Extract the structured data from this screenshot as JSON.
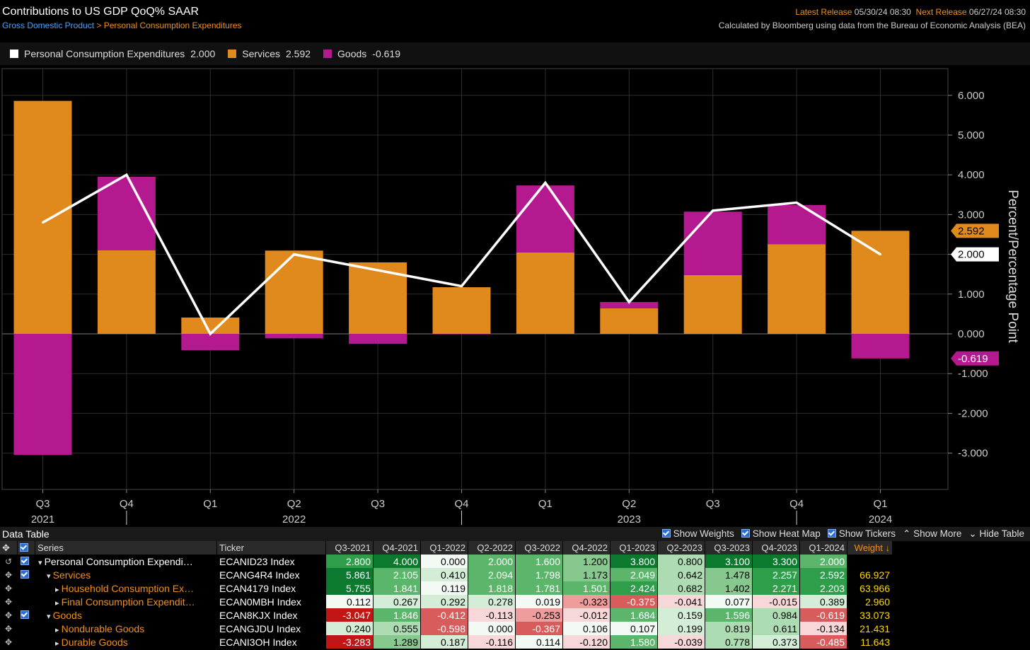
{
  "header": {
    "title": "Contributions to US GDP QoQ% SAAR",
    "breadcrumb_root": "Gross Domestic Product",
    "breadcrumb_sep": ">",
    "breadcrumb_current": "Personal Consumption Expenditures",
    "latest_release_label": "Latest Release",
    "latest_release_value": "05/30/24 08:30",
    "next_release_label": "Next Release",
    "next_release_value": "06/27/24 08:30",
    "source": "Calculated by Bloomberg using data from the Bureau of Economic Analysis (BEA)"
  },
  "legend": [
    {
      "name": "Personal Consumption Expenditures",
      "value": "2.000",
      "color": "#ffffff"
    },
    {
      "name": "Services",
      "value": "2.592",
      "color": "#e08a1e"
    },
    {
      "name": "Goods",
      "value": "-0.619",
      "color": "#b5198f"
    }
  ],
  "chart_data": {
    "type": "bar",
    "stacked": true,
    "title": "Contributions to US GDP QoQ% SAAR",
    "ylabel": "Percent/Percentage Point",
    "ylim": [
      -3.9,
      6.5
    ],
    "yticks": [
      "6.000",
      "5.000",
      "4.000",
      "3.000",
      "2.000",
      "1.000",
      "0.000",
      "-1.000",
      "-2.000",
      "-3.000"
    ],
    "ytick_values": [
      6,
      5,
      4,
      3,
      2,
      1,
      0,
      -1,
      -2,
      -3
    ],
    "categories": [
      "Q3",
      "Q4",
      "Q1",
      "Q2",
      "Q3",
      "Q4",
      "Q1",
      "Q2",
      "Q3",
      "Q4",
      "Q1"
    ],
    "years": [
      {
        "label": "2021",
        "at_index": 0
      },
      {
        "label": "2022",
        "at_index": 3
      },
      {
        "label": "2023",
        "at_index": 7
      },
      {
        "label": "2024",
        "at_index": 10
      }
    ],
    "series": [
      {
        "name": "Services",
        "kind": "bar",
        "color": "#e08a1e",
        "values": [
          5.861,
          2.105,
          0.41,
          2.094,
          1.798,
          1.173,
          2.049,
          0.642,
          1.478,
          2.257,
          2.592
        ]
      },
      {
        "name": "Goods",
        "kind": "bar",
        "color": "#b5198f",
        "values": [
          -3.047,
          1.846,
          -0.412,
          -0.113,
          -0.253,
          -0.012,
          1.684,
          0.159,
          1.596,
          0.984,
          -0.619
        ]
      },
      {
        "name": "Personal Consumption Expenditures",
        "kind": "line",
        "color": "#ffffff",
        "values": [
          2.8,
          4.0,
          0.0,
          2.0,
          1.6,
          1.2,
          3.8,
          0.8,
          3.1,
          3.3,
          2.0
        ]
      }
    ],
    "last_value_tags": [
      {
        "text": "2.592",
        "value": 2.592,
        "bg": "#e08a1e",
        "fg": "#000000"
      },
      {
        "text": "2.000",
        "value": 2.0,
        "bg": "#ffffff",
        "fg": "#000000"
      },
      {
        "text": "-0.619",
        "value": -0.619,
        "bg": "#b5198f",
        "fg": "#ffffff"
      }
    ]
  },
  "data_table": {
    "title": "Data Table",
    "controls": [
      "Show Weights",
      "Show Heat Map",
      "Show Tickers",
      "Show More",
      "Hide Table"
    ],
    "col_series": "Series",
    "col_ticker": "Ticker",
    "col_weight": "Weight ↓",
    "periods": [
      "Q3-2021",
      "Q4-2021",
      "Q1-2022",
      "Q2-2022",
      "Q3-2022",
      "Q4-2022",
      "Q1-2023",
      "Q2-2023",
      "Q3-2023",
      "Q4-2023",
      "Q1-2024"
    ],
    "rows": [
      {
        "series": "Personal Consumption Expendi…",
        "ticker": "ECANID23 Index",
        "color": "white",
        "indent": 0,
        "arrow": "▾",
        "checked": true,
        "icon": "↺",
        "values": [
          "2.800",
          "4.000",
          "0.000",
          "2.000",
          "1.600",
          "1.200",
          "3.800",
          "0.800",
          "3.100",
          "3.300",
          "2.000"
        ],
        "weight": ""
      },
      {
        "series": "Services",
        "ticker": "ECANG4R4 Index",
        "color": "orange",
        "indent": 1,
        "arrow": "▾",
        "checked": true,
        "icon": "✥",
        "values": [
          "5.861",
          "2.105",
          "0.410",
          "2.094",
          "1.798",
          "1.173",
          "2.049",
          "0.642",
          "1.478",
          "2.257",
          "2.592"
        ],
        "weight": "66.927"
      },
      {
        "series": "Household Consumption Ex…",
        "ticker": "ECAN4179 Index",
        "color": "orange",
        "indent": 2,
        "arrow": "▸",
        "checked": false,
        "icon": "✥",
        "values": [
          "5.755",
          "1.841",
          "0.119",
          "1.818",
          "1.781",
          "1.501",
          "2.424",
          "0.682",
          "1.402",
          "2.271",
          "2.203"
        ],
        "weight": "63.966"
      },
      {
        "series": "Final Consumption Expendit…",
        "ticker": "ECAN0MBH Index",
        "color": "orange",
        "indent": 2,
        "arrow": "▸",
        "checked": false,
        "icon": "✥",
        "values": [
          "0.112",
          "0.267",
          "0.292",
          "0.278",
          "0.019",
          "-0.323",
          "-0.375",
          "-0.041",
          "0.077",
          "-0.015",
          "0.389"
        ],
        "weight": "2.960"
      },
      {
        "series": "Goods",
        "ticker": "ECAN8KJX Index",
        "color": "orange",
        "indent": 1,
        "arrow": "▾",
        "checked": true,
        "icon": "✥",
        "values": [
          "-3.047",
          "1.846",
          "-0.412",
          "-0.113",
          "-0.253",
          "-0.012",
          "1.684",
          "0.159",
          "1.596",
          "0.984",
          "-0.619"
        ],
        "weight": "33.073"
      },
      {
        "series": "Nondurable Goods",
        "ticker": "ECANGJDU Index",
        "color": "orange",
        "indent": 2,
        "arrow": "▸",
        "checked": false,
        "icon": "✥",
        "values": [
          "0.240",
          "0.555",
          "-0.598",
          "0.000",
          "-0.367",
          "0.106",
          "0.107",
          "0.199",
          "0.819",
          "0.611",
          "-0.134"
        ],
        "weight": "21.431"
      },
      {
        "series": "Durable Goods",
        "ticker": "ECANI3OH Index",
        "color": "orange",
        "indent": 2,
        "arrow": "▸",
        "checked": false,
        "icon": "✥",
        "values": [
          "-3.283",
          "1.289",
          "0.187",
          "-0.116",
          "0.114",
          "-0.120",
          "1.580",
          "-0.039",
          "0.778",
          "0.373",
          "-0.485"
        ],
        "weight": "11.643"
      }
    ]
  }
}
